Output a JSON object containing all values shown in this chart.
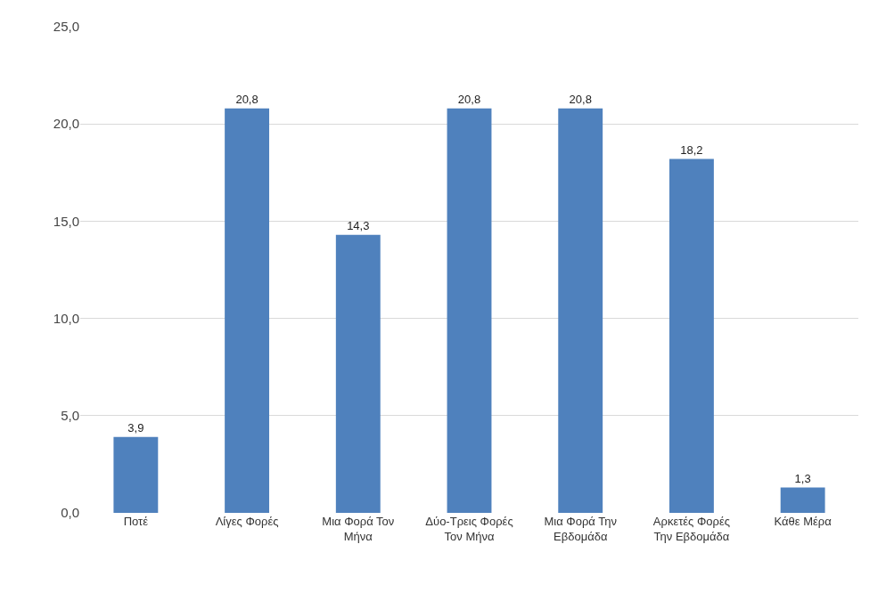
{
  "chart_data": {
    "type": "bar",
    "categories": [
      "Ποτέ",
      "Λίγες Φορές",
      "Μια Φορά Τον Μήνα",
      "Δύο-Τρεις Φορές Τον Μήνα",
      "Μια Φορά Την Εβδομάδα",
      "Αρκετές Φορές Την Εβδομάδα",
      "Κάθε Μέρα"
    ],
    "values": [
      3.9,
      20.8,
      14.3,
      20.8,
      20.8,
      18.2,
      1.3
    ],
    "value_labels": [
      "3,9",
      "20,8",
      "14,3",
      "20,8",
      "20,8",
      "18,2",
      "1,3"
    ],
    "color": "#4f81bd",
    "ylim": [
      0,
      25
    ],
    "yticks": [
      {
        "value": 0,
        "label": "0,0"
      },
      {
        "value": 5,
        "label": "5,0"
      },
      {
        "value": 10,
        "label": "10,0"
      },
      {
        "value": 15,
        "label": "15,0"
      },
      {
        "value": 20,
        "label": "20,0"
      },
      {
        "value": 25,
        "label": "25,0"
      }
    ],
    "grid": "y"
  }
}
